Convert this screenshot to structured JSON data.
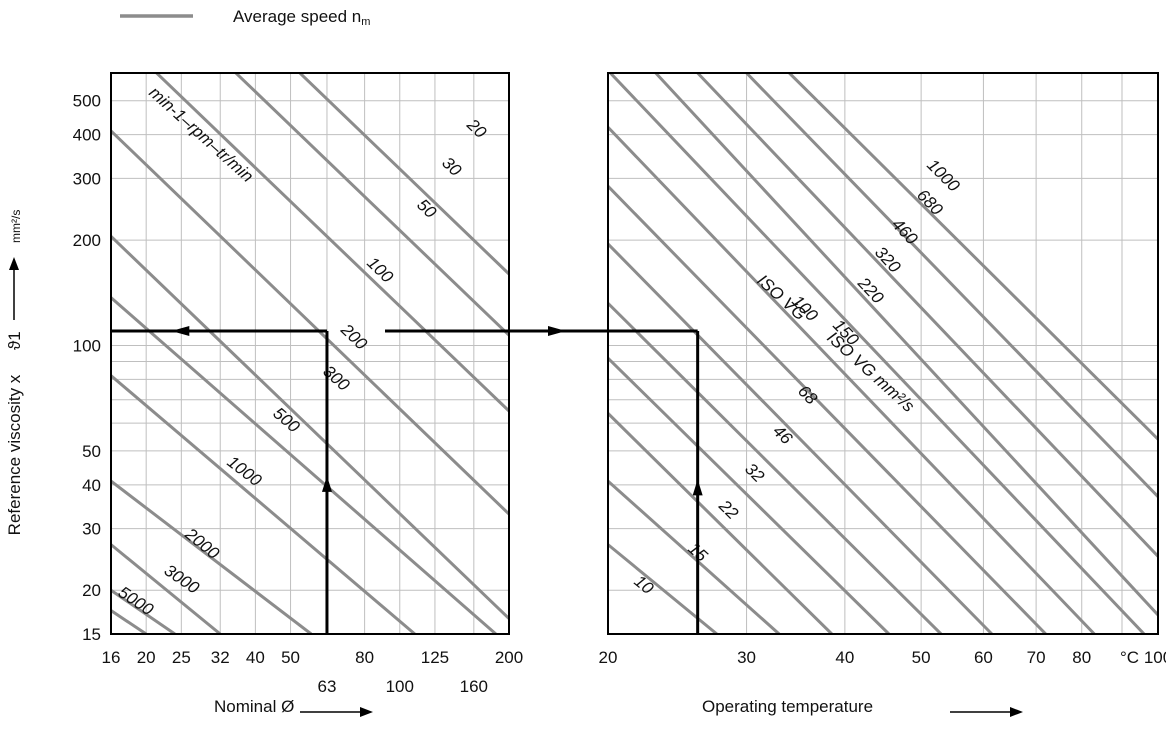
{
  "legend": {
    "label": "Average speed n",
    "label_sub": "m",
    "color": "#8c8c8c"
  },
  "y_axis": {
    "label": "Reference viscosity x",
    "symbol": "ϑ1",
    "unit": "mm²/s",
    "ticks": [
      15,
      20,
      30,
      40,
      50,
      100,
      200,
      300,
      400,
      500
    ],
    "ylim": [
      15,
      600
    ],
    "scale": "log"
  },
  "x_axis_left": {
    "label": "Nominal Ø",
    "xlim": [
      16,
      200
    ],
    "scale": "log",
    "ticks_row1": [
      16,
      20,
      25,
      32,
      40,
      50,
      80,
      125,
      200
    ],
    "ticks_row2": [
      63,
      100,
      160
    ]
  },
  "x_axis_right": {
    "label": "Operating temperature",
    "unit": "°C",
    "xlim": [
      20,
      100
    ],
    "scale": "log",
    "ticks": [
      20,
      30,
      40,
      50,
      60,
      70,
      80,
      100
    ]
  },
  "colors": {
    "curve": "#8c8c8c",
    "frame": "#000000",
    "grid": "#bfbfbf",
    "example": "#000000"
  },
  "chart_data": [
    {
      "type": "line",
      "panel": "left",
      "xlabel": "Nominal Ø",
      "ylabel": "Reference viscosity x ϑ1 mm²/s",
      "xlim": [
        16,
        200
      ],
      "ylim": [
        15,
        600
      ],
      "scale": "log-log",
      "grid": true,
      "family_label": "min-1–rpm–tr/min",
      "series": [
        {
          "name": "20",
          "x": [
            16,
            200
          ],
          "y": [
            1980,
            160
          ]
        },
        {
          "name": "30",
          "x": [
            16,
            200
          ],
          "y": [
            1320,
            107
          ]
        },
        {
          "name": "50",
          "x": [
            16,
            200
          ],
          "y": [
            800,
            65
          ]
        },
        {
          "name": "100",
          "x": [
            16,
            200
          ],
          "y": [
            410,
            33
          ]
        },
        {
          "name": "200",
          "x": [
            16,
            200
          ],
          "y": [
            205,
            16.6
          ]
        },
        {
          "name": "300",
          "x": [
            16,
            184
          ],
          "y": [
            137,
            15
          ]
        },
        {
          "name": "500",
          "x": [
            16,
            110
          ],
          "y": [
            82,
            15
          ]
        },
        {
          "name": "1000",
          "x": [
            16,
            57
          ],
          "y": [
            41,
            15
          ]
        },
        {
          "name": "2000",
          "x": [
            16,
            32
          ],
          "y": [
            27,
            15
          ]
        },
        {
          "name": "3000",
          "x": [
            16,
            24
          ],
          "y": [
            20,
            15
          ]
        },
        {
          "name": "5000",
          "x": [
            16,
            20
          ],
          "y": [
            17.5,
            15
          ]
        }
      ],
      "annotations": [
        {
          "type": "arrow-up",
          "x": 63,
          "y": [
            15,
            43
          ],
          "color": "#000000"
        },
        {
          "type": "line",
          "x": 63,
          "y": [
            15,
            110
          ]
        },
        {
          "type": "arrow-left",
          "y": 110,
          "x": [
            63,
            25
          ]
        },
        {
          "type": "line",
          "y": 110,
          "x": [
            16,
            63
          ]
        }
      ]
    },
    {
      "type": "line",
      "panel": "right",
      "xlabel": "Operating temperature",
      "xunit": "°C",
      "ylabel": "Reference viscosity x ϑ1 mm²/s",
      "xlim": [
        20,
        100
      ],
      "ylim": [
        15,
        600
      ],
      "scale": "log-log",
      "grid": true,
      "series_label_suffix": "ISO VG 100 mm²/s",
      "series": [
        {
          "name": "10",
          "x": [
            20,
            27.5
          ],
          "y": [
            27,
            15
          ]
        },
        {
          "name": "15",
          "x": [
            20,
            33
          ],
          "y": [
            41,
            15
          ]
        },
        {
          "name": "22",
          "x": [
            20,
            38.5
          ],
          "y": [
            64,
            15
          ]
        },
        {
          "name": "32",
          "x": [
            20,
            45.5
          ],
          "y": [
            92,
            15
          ]
        },
        {
          "name": "46",
          "x": [
            20,
            53
          ],
          "y": [
            132,
            15
          ]
        },
        {
          "name": "68",
          "x": [
            20,
            61.5
          ],
          "y": [
            195,
            15
          ]
        },
        {
          "name": "100",
          "x": [
            20,
            72
          ],
          "y": [
            285,
            15
          ]
        },
        {
          "name": "150",
          "x": [
            20,
            83
          ],
          "y": [
            420,
            15
          ]
        },
        {
          "name": "220",
          "x": [
            20,
            96
          ],
          "y": [
            610,
            15
          ]
        },
        {
          "name": "320",
          "x": [
            23,
            100
          ],
          "y": [
            600,
            17
          ]
        },
        {
          "name": "460",
          "x": [
            26,
            100
          ],
          "y": [
            600,
            25
          ]
        },
        {
          "name": "680",
          "x": [
            30,
            100
          ],
          "y": [
            600,
            37
          ]
        },
        {
          "name": "1000",
          "x": [
            34,
            100
          ],
          "y": [
            600,
            54
          ]
        }
      ],
      "annotations": [
        {
          "type": "arrow-right",
          "y": 110,
          "x": [
            20,
            48
          ]
        },
        {
          "type": "line",
          "y": 110,
          "x": [
            20,
            26
          ]
        },
        {
          "type": "arrow-up",
          "x": 26,
          "y": [
            15,
            42
          ]
        }
      ]
    }
  ]
}
